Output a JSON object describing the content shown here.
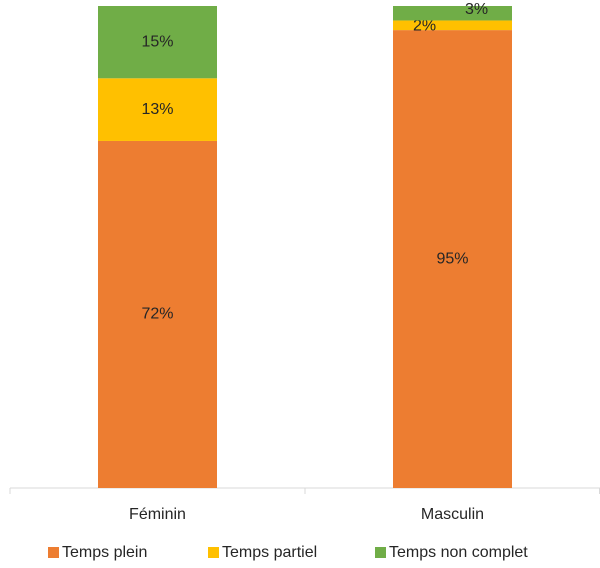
{
  "chart_data": {
    "type": "stacked_bar",
    "categories": [
      "Féminin",
      "Masculin"
    ],
    "series": [
      {
        "name": "Temps plein",
        "color": "#ED7D31",
        "values": [
          72,
          95
        ],
        "value_labels": [
          "72%",
          "95%"
        ]
      },
      {
        "name": "Temps partiel",
        "color": "#FFC000",
        "values": [
          13,
          2
        ],
        "value_labels": [
          "13%",
          "2%"
        ]
      },
      {
        "name": "Temps non complet",
        "color": "#70AD47",
        "values": [
          15,
          3
        ],
        "value_labels": [
          "15%",
          "3%"
        ]
      }
    ],
    "ylim": [
      0,
      100
    ],
    "legend": "bottom"
  }
}
